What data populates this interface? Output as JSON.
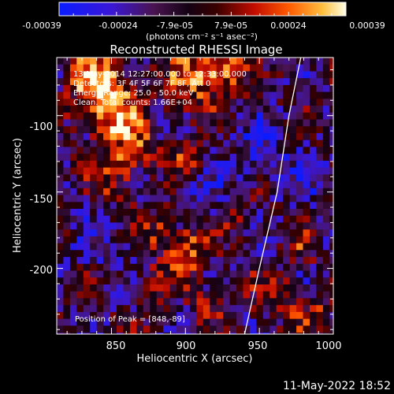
{
  "chart_data": {
    "type": "heatmap",
    "title": "Reconstructed RHESSI Image",
    "xlabel": "Heliocentric X (arcsec)",
    "ylabel": "Heliocentric Y (arcsec)",
    "xlim": [
      813,
      1000
    ],
    "ylim": [
      -243,
      -62
    ],
    "xticks": [
      850,
      900,
      950,
      1000
    ],
    "yticks": [
      -100,
      -150,
      -200
    ],
    "colorbar": {
      "range": [
        -0.00039,
        0.00039
      ],
      "tick_labels": [
        "-0.00039",
        "-0.00024",
        "-7.9e-05",
        "7.9e-05",
        "0.00024",
        "0.00039"
      ],
      "units_label": "(photons cm⁻² s⁻¹ asec⁻²)"
    },
    "annotations": [
      "13-May-2014 12:27:00.000 to 12:33:00.000",
      "Detectors: 3F 4F 5F 6F 7F 8F, Att 0",
      "Energy Range: 25.0 - 50.0 keV",
      "Clean.  Total counts: 1.66E+04"
    ],
    "peak_label": "Position of Peak = [848,-89]",
    "peak": [
      848,
      -89
    ],
    "limb_curve": [
      [
        940,
        -243
      ],
      [
        950,
        -200
      ],
      [
        962,
        -150
      ],
      [
        970,
        -100
      ],
      [
        978,
        -62
      ]
    ],
    "sources": [
      {
        "x": 848,
        "y": -95,
        "amp": 1.0,
        "s": 13
      },
      {
        "x": 836,
        "y": -72,
        "amp": 0.8,
        "s": 12
      },
      {
        "x": 862,
        "y": -118,
        "amp": 0.55,
        "s": 10
      },
      {
        "x": 905,
        "y": -72,
        "amp": 0.75,
        "s": 14
      },
      {
        "x": 925,
        "y": -68,
        "amp": 0.6,
        "s": 10
      },
      {
        "x": 852,
        "y": -138,
        "amp": 0.45,
        "s": 11
      },
      {
        "x": 897,
        "y": -125,
        "amp": 0.4,
        "s": 10
      },
      {
        "x": 900,
        "y": -185,
        "amp": 0.65,
        "s": 11
      },
      {
        "x": 880,
        "y": -172,
        "amp": 0.4,
        "s": 10
      },
      {
        "x": 872,
        "y": -210,
        "amp": 0.35,
        "s": 9
      },
      {
        "x": 915,
        "y": -220,
        "amp": 0.35,
        "s": 9
      },
      {
        "x": 962,
        "y": -218,
        "amp": 0.45,
        "s": 10
      },
      {
        "x": 985,
        "y": -230,
        "amp": 0.4,
        "s": 9
      },
      {
        "x": 975,
        "y": -185,
        "amp": 0.35,
        "s": 8
      },
      {
        "x": 935,
        "y": -160,
        "amp": 0.3,
        "s": 9
      },
      {
        "x": 910,
        "y": -150,
        "amp": -0.3,
        "s": 12
      },
      {
        "x": 950,
        "y": -120,
        "amp": -0.35,
        "s": 14
      },
      {
        "x": 985,
        "y": -140,
        "amp": -0.3,
        "s": 12
      },
      {
        "x": 840,
        "y": -180,
        "amp": -0.25,
        "s": 12
      }
    ]
  },
  "footer": {
    "timestamp": "11-May-2022 18:52"
  }
}
